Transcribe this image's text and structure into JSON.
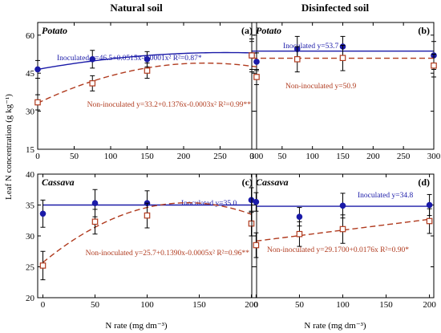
{
  "figure": {
    "column_titles": [
      "Natural soil",
      "Disinfected soil"
    ],
    "shared_ylabel": "Leaf N concentration (g kg⁻¹)",
    "shared_xlabel": "N rate (mg dm⁻³)",
    "colors": {
      "inoculated": "#1a1aa8",
      "non_inoculated": "#b03a1e",
      "axis": "#000000"
    }
  },
  "chart_data": [
    {
      "id": "a",
      "type": "scatter",
      "panel_label": "(a)",
      "crop": "Potato",
      "x": [
        0,
        75,
        150,
        300
      ],
      "xlim": [
        0,
        300
      ],
      "xticks": [
        0,
        50,
        100,
        150,
        200,
        250,
        300
      ],
      "ylim": [
        15,
        65
      ],
      "yticks": [
        15,
        30,
        45,
        60
      ],
      "grid": false,
      "series": [
        {
          "name": "Inoculated",
          "marker": "filled-circle",
          "values": [
            46.5,
            50.5,
            50.5,
            49.5
          ],
          "errors": [
            3.5,
            3.5,
            3.0,
            3.5
          ],
          "fit": {
            "kind": "poly2",
            "coef": [
              46.5,
              0.0515,
              -0.0001
            ]
          },
          "equation": "Inoculated y=46.5+0.0515x-0.0001x² R²=0.87*"
        },
        {
          "name": "Non-inoculated",
          "marker": "open-square",
          "values": [
            33.5,
            41,
            46,
            43.5
          ],
          "errors": [
            3.0,
            3.0,
            3.0,
            3.0
          ],
          "fit": {
            "kind": "poly2",
            "coef": [
              33.2,
              0.1376,
              -0.0003
            ]
          },
          "equation": "Non-inoculated y=33.2+0.1376x-0.0003x² R²=0.99**"
        }
      ]
    },
    {
      "id": "b",
      "type": "scatter",
      "panel_label": "(b)",
      "crop": "Potato",
      "x": [
        0,
        75,
        150,
        300
      ],
      "xlim": [
        0,
        300
      ],
      "xticks": [
        0,
        50,
        100,
        150,
        200,
        250,
        300
      ],
      "ylim": [
        15,
        65
      ],
      "yticks": [
        15,
        30,
        45,
        60
      ],
      "grid": false,
      "series": [
        {
          "name": "Inoculated",
          "marker": "filled-circle",
          "values": [
            52,
            54.5,
            55.5,
            52
          ],
          "errors": [
            6.5,
            5.0,
            4.0,
            5.5
          ],
          "fit": {
            "kind": "const",
            "coef": [
              53.7
            ]
          },
          "equation": "Inoculated y=53.7"
        },
        {
          "name": "Non-inoculated",
          "marker": "open-square",
          "values": [
            52,
            50.5,
            51,
            48
          ],
          "errors": [
            5.5,
            5.0,
            5.0,
            4.5
          ],
          "fit": {
            "kind": "const",
            "coef": [
              50.9
            ]
          },
          "equation": "Non-inoculated y=50.9"
        }
      ]
    },
    {
      "id": "c",
      "type": "scatter",
      "panel_label": "(c)",
      "crop": "Cassava",
      "x": [
        0,
        50,
        100,
        200
      ],
      "xlim": [
        -5,
        205
      ],
      "xticks": [
        0,
        50,
        100,
        150,
        200
      ],
      "ylim": [
        20,
        40
      ],
      "yticks": [
        20,
        25,
        30,
        35,
        40
      ],
      "grid": false,
      "series": [
        {
          "name": "Inoculated",
          "marker": "filled-circle",
          "values": [
            33.6,
            35.3,
            35.3,
            35.8
          ],
          "errors": [
            2.2,
            2.2,
            2.0,
            2.0
          ],
          "fit": {
            "kind": "const",
            "coef": [
              35.0
            ]
          },
          "equation": "Inoculated y=35.0"
        },
        {
          "name": "Non-inoculated",
          "marker": "open-square",
          "values": [
            25.2,
            32.3,
            33.3,
            32.0
          ],
          "errors": [
            2.3,
            2.0,
            2.0,
            2.0
          ],
          "fit": {
            "kind": "poly2",
            "coef": [
              25.7,
              0.139,
              -0.0005
            ]
          },
          "equation": "Non-inoculated y=25.7+0.1390x-0.0005x² R²=0.96**"
        }
      ]
    },
    {
      "id": "d",
      "type": "scatter",
      "panel_label": "(d)",
      "crop": "Cassava",
      "x": [
        0,
        50,
        100,
        200
      ],
      "xlim": [
        -5,
        205
      ],
      "xticks": [
        0,
        50,
        100,
        150,
        200
      ],
      "ylim": [
        20,
        40
      ],
      "yticks": [
        20,
        25,
        30,
        35,
        40
      ],
      "grid": false,
      "series": [
        {
          "name": "Inoculated",
          "marker": "filled-circle",
          "values": [
            35.5,
            33.1,
            34.9,
            35.0
          ],
          "errors": [
            1.5,
            1.5,
            2.0,
            1.7
          ],
          "fit": {
            "kind": "const",
            "coef": [
              34.8
            ]
          },
          "equation": "Inoculated y=34.8"
        },
        {
          "name": "Non-inoculated",
          "marker": "open-square",
          "values": [
            28.5,
            30.3,
            31.1,
            32.4
          ],
          "errors": [
            2.0,
            2.0,
            2.3,
            2.0
          ],
          "fit": {
            "kind": "linear",
            "coef": [
              29.17,
              0.0176
            ]
          },
          "equation": "Non-inoculated y=29.1700+0.0176x R²=0.90*"
        }
      ]
    }
  ]
}
